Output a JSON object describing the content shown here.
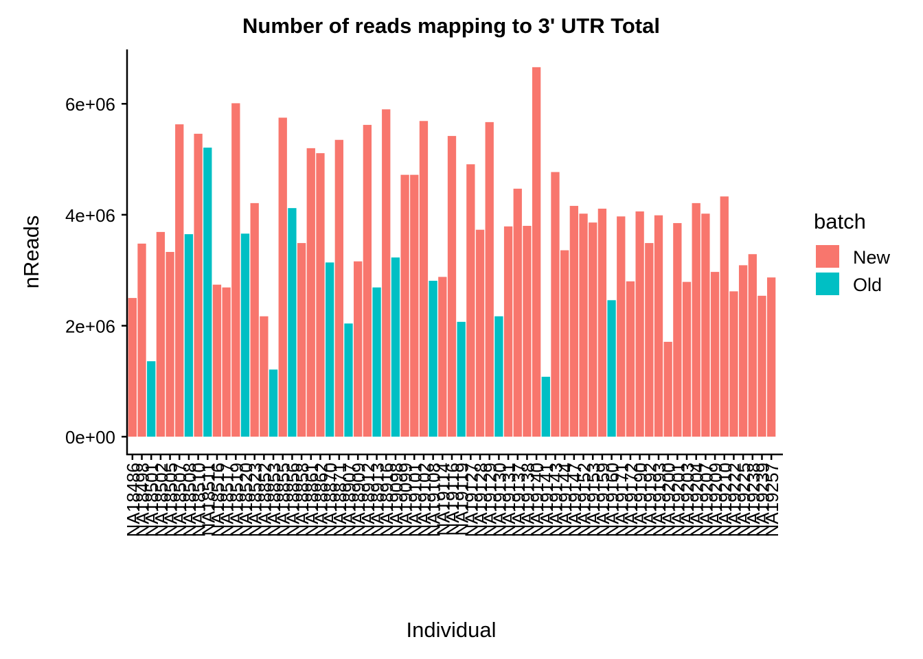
{
  "chart_data": {
    "type": "bar",
    "title": "Number of reads mapping to 3' UTR Total",
    "x_label": "Individual",
    "y_label": "nReads",
    "legend_title": "batch",
    "categories": [
      "NA18486",
      "NA18498",
      "NA18501",
      "NA18502",
      "NA18505",
      "NA18507",
      "NA18508",
      "NA18510",
      "NA18511",
      "NA18516",
      "NA18517",
      "NA18519",
      "NA18520",
      "NA18523",
      "NA18852",
      "NA18853",
      "NA18855",
      "NA18856",
      "NA18858",
      "NA18861",
      "NA18862",
      "NA18870",
      "NA18871",
      "NA18907",
      "NA18909",
      "NA18912",
      "NA18913",
      "NA18916",
      "NA19098",
      "NA19099",
      "NA19101",
      "NA19102",
      "NA19108",
      "NA19114",
      "NA19116",
      "NA19119",
      "NA19127",
      "NA19128",
      "NA19129",
      "NA19130",
      "NA19131",
      "NA19137",
      "NA19138",
      "NA19140",
      "NA19141",
      "NA19143",
      "NA19144",
      "NA19147",
      "NA19152",
      "NA19153",
      "NA19159",
      "NA19160",
      "NA19171",
      "NA19172",
      "NA19190",
      "NA19192",
      "NA19193",
      "NA19200",
      "NA19201",
      "NA19203",
      "NA19204",
      "NA19207",
      "NA19209",
      "NA19210",
      "NA19222",
      "NA19225",
      "NA19238",
      "NA19239",
      "NA19257"
    ],
    "series": [
      {
        "name": "New",
        "color": "#F8766D",
        "values": [
          2500000,
          3480000,
          null,
          3690000,
          3330000,
          5630000,
          null,
          5460000,
          null,
          2740000,
          2690000,
          6010000,
          null,
          4210000,
          2170000,
          null,
          5750000,
          null,
          3490000,
          5200000,
          5110000,
          null,
          5350000,
          null,
          3160000,
          5620000,
          null,
          5900000,
          null,
          4720000,
          4720000,
          5690000,
          null,
          2880000,
          5420000,
          null,
          4910000,
          3730000,
          5670000,
          null,
          3790000,
          4470000,
          3800000,
          6660000,
          null,
          4770000,
          3360000,
          4160000,
          4020000,
          3860000,
          4110000,
          null,
          3970000,
          2800000,
          4060000,
          3490000,
          3990000,
          1710000,
          3850000,
          2790000,
          4210000,
          4020000,
          2970000,
          4330000,
          2620000,
          3090000,
          3290000,
          2540000,
          2870000
        ]
      },
      {
        "name": "Old",
        "color": "#00BFC4",
        "values": [
          null,
          null,
          1360000,
          null,
          null,
          null,
          3650000,
          null,
          5210000,
          null,
          null,
          null,
          3660000,
          null,
          null,
          1210000,
          null,
          4120000,
          null,
          null,
          null,
          3140000,
          null,
          2040000,
          null,
          null,
          2690000,
          null,
          3230000,
          null,
          null,
          null,
          2810000,
          null,
          null,
          2070000,
          null,
          null,
          null,
          2170000,
          null,
          null,
          null,
          null,
          1080000,
          null,
          null,
          null,
          null,
          null,
          null,
          2460000,
          null,
          null,
          null,
          null,
          null,
          null,
          null,
          null,
          null,
          null,
          null,
          null,
          null,
          null,
          null,
          null,
          null
        ]
      }
    ],
    "ylim": [
      -320000,
      6980000
    ],
    "yticks": [
      {
        "value": 0,
        "label": "0e+00"
      },
      {
        "value": 2000000,
        "label": "2e+06"
      },
      {
        "value": 4000000,
        "label": "4e+06"
      },
      {
        "value": 6000000,
        "label": "6e+06"
      }
    ]
  }
}
